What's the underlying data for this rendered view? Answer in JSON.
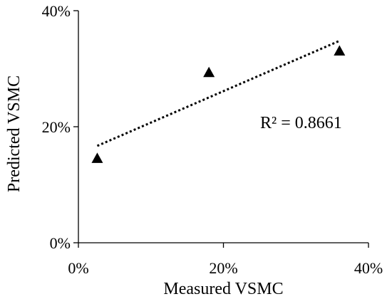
{
  "chart_data": {
    "type": "scatter",
    "title": "",
    "xlabel": "Measured VSMC",
    "ylabel": "Predicted VSMC",
    "xlim": [
      0,
      40
    ],
    "ylim": [
      0,
      40
    ],
    "x_ticks": [
      "0%",
      "20%",
      "40%"
    ],
    "y_ticks": [
      "0%",
      "20%",
      "40%"
    ],
    "tick_values": [
      0,
      20,
      40
    ],
    "grid": false,
    "series": [
      {
        "marker": "triangle",
        "color": "#000000",
        "x": [
          2.6,
          18.0,
          36.0
        ],
        "y": [
          14.5,
          29.3,
          33.0
        ]
      }
    ],
    "trendline": {
      "style": "dotted",
      "color": "#000000",
      "x": [
        2.6,
        36.0
      ],
      "y": [
        16.7,
        34.8
      ]
    },
    "annotations": [
      "R² = 0.8661"
    ]
  }
}
